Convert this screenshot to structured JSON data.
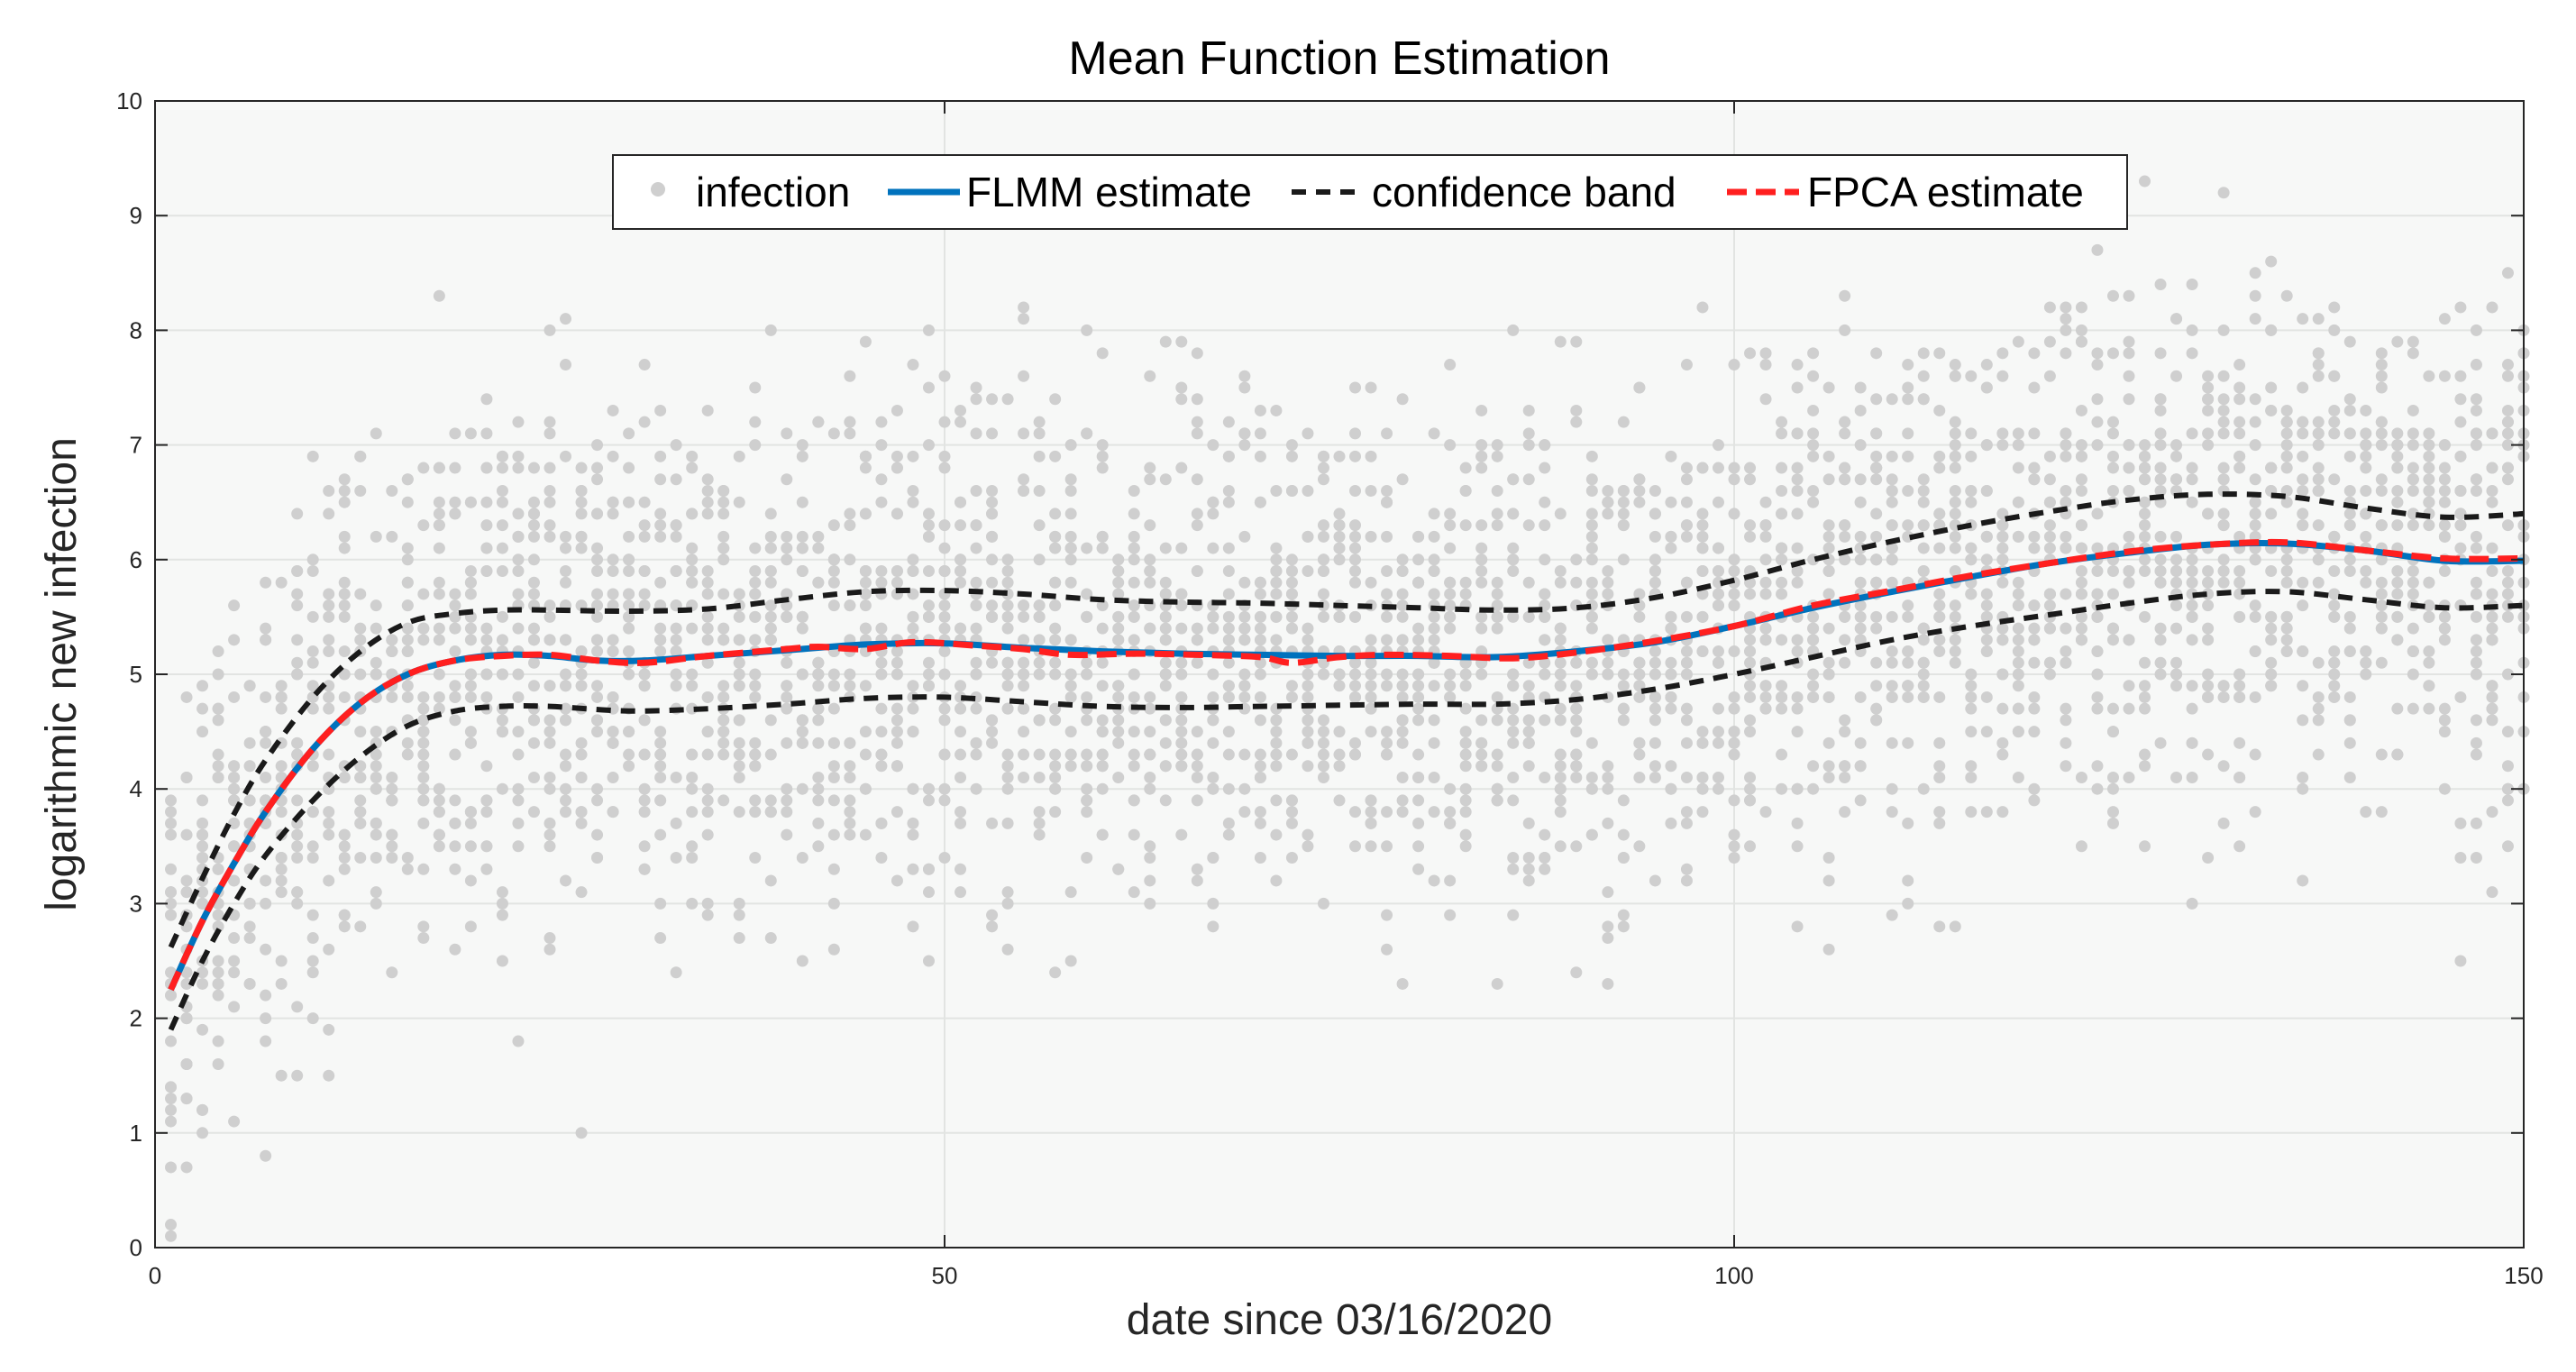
{
  "chart_data": {
    "type": "scatter+line",
    "title": "Mean Function Estimation",
    "xlabel": "date since 03/16/2020",
    "ylabel": "logarithmic new infection",
    "xlim": [
      0,
      150
    ],
    "ylim": [
      0,
      10
    ],
    "xticks": [
      0,
      50,
      100,
      150
    ],
    "yticks": [
      0,
      1,
      2,
      3,
      4,
      5,
      6,
      7,
      8,
      9,
      10
    ],
    "grid": true,
    "legend_position": "top-center",
    "legend": [
      "infection",
      "FLMM estimate",
      "confidence band",
      "FPCA estimate"
    ],
    "colors": {
      "scatter": "#cfcfcf",
      "flmm": "#0072bd",
      "band": "#1a1a1a",
      "fpca": "#ff1f1f",
      "axes_bg": "#f7f8f7",
      "grid": "#e2e4e2"
    },
    "series": [
      {
        "name": "infection",
        "type": "scatter",
        "x_range": [
          1,
          150
        ],
        "points_per_day": 24,
        "noise_sd": 1.5,
        "y_min": 0,
        "y_max": 9.6,
        "note": "dense scatter of observed log new infections around the mean curve"
      },
      {
        "name": "FLMM estimate",
        "type": "line",
        "x": [
          1,
          3,
          5,
          7,
          10,
          13,
          16,
          19,
          22,
          25,
          28,
          31,
          35,
          40,
          45,
          50,
          55,
          60,
          65,
          70,
          75,
          80,
          85,
          90,
          95,
          100,
          105,
          110,
          115,
          120,
          125,
          130,
          135,
          140,
          145,
          150
        ],
        "y": [
          2.25,
          2.85,
          3.35,
          3.8,
          4.35,
          4.75,
          5.0,
          5.12,
          5.17,
          5.16,
          5.12,
          5.12,
          5.16,
          5.21,
          5.26,
          5.27,
          5.23,
          5.2,
          5.18,
          5.17,
          5.16,
          5.16,
          5.15,
          5.2,
          5.28,
          5.42,
          5.58,
          5.72,
          5.85,
          5.97,
          6.06,
          6.13,
          6.14,
          6.08,
          5.99,
          5.99
        ]
      },
      {
        "name": "confidence band (upper)",
        "type": "line",
        "x": [
          1,
          3,
          5,
          7,
          10,
          13,
          16,
          19,
          22,
          25,
          30,
          35,
          40,
          45,
          50,
          55,
          60,
          65,
          70,
          75,
          80,
          85,
          90,
          95,
          100,
          105,
          110,
          115,
          120,
          125,
          130,
          135,
          140,
          145,
          150
        ],
        "y": [
          2.62,
          3.22,
          3.78,
          4.25,
          4.8,
          5.2,
          5.45,
          5.53,
          5.56,
          5.56,
          5.55,
          5.57,
          5.65,
          5.72,
          5.73,
          5.7,
          5.65,
          5.63,
          5.62,
          5.6,
          5.58,
          5.56,
          5.58,
          5.67,
          5.82,
          6.0,
          6.16,
          6.3,
          6.42,
          6.52,
          6.57,
          6.55,
          6.45,
          6.37,
          6.4
        ]
      },
      {
        "name": "confidence band (lower)",
        "type": "line",
        "x": [
          1,
          3,
          5,
          7,
          10,
          13,
          16,
          19,
          22,
          25,
          30,
          35,
          40,
          45,
          50,
          55,
          60,
          65,
          70,
          75,
          80,
          85,
          90,
          95,
          100,
          105,
          110,
          115,
          120,
          125,
          130,
          135,
          140,
          145,
          150
        ],
        "y": [
          1.9,
          2.5,
          3.0,
          3.42,
          3.9,
          4.28,
          4.55,
          4.68,
          4.72,
          4.72,
          4.68,
          4.7,
          4.74,
          4.79,
          4.8,
          4.76,
          4.72,
          4.71,
          4.72,
          4.73,
          4.74,
          4.74,
          4.78,
          4.87,
          5.0,
          5.15,
          5.3,
          5.42,
          5.52,
          5.62,
          5.7,
          5.72,
          5.65,
          5.58,
          5.6
        ]
      },
      {
        "name": "FPCA estimate",
        "type": "line",
        "x": [
          1,
          3,
          5,
          7,
          10,
          13,
          16,
          19,
          22,
          25,
          28,
          31,
          35,
          40,
          42,
          45,
          48,
          52,
          55,
          58,
          62,
          66,
          70,
          72,
          75,
          78,
          82,
          86,
          90,
          95,
          100,
          105,
          110,
          115,
          120,
          125,
          130,
          135,
          140,
          145,
          150
        ],
        "y": [
          2.25,
          2.85,
          3.35,
          3.8,
          4.35,
          4.75,
          5.0,
          5.12,
          5.16,
          5.17,
          5.12,
          5.1,
          5.16,
          5.22,
          5.24,
          5.22,
          5.28,
          5.25,
          5.22,
          5.17,
          5.18,
          5.17,
          5.15,
          5.1,
          5.15,
          5.17,
          5.16,
          5.14,
          5.19,
          5.29,
          5.42,
          5.6,
          5.73,
          5.86,
          5.97,
          6.07,
          6.13,
          6.15,
          6.08,
          6.01,
          6.01
        ]
      }
    ]
  }
}
